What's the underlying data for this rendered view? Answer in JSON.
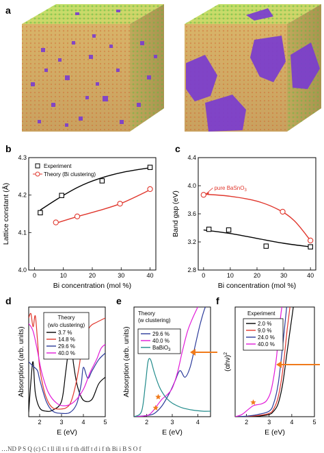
{
  "colors": {
    "black": "#000000",
    "red": "#e0362c",
    "navy": "#2b3a9a",
    "magenta": "#e21ad8",
    "teal": "#1f8a8a",
    "orange": "#f07a1a",
    "green_atoms": "#3cc43c",
    "yellow_bonds": "#c8b43c",
    "purple_atoms": "#7a3cd0"
  },
  "panels": {
    "a": {
      "label": "a"
    },
    "b": {
      "label": "b"
    },
    "c": {
      "label": "c"
    },
    "d": {
      "label": "d"
    },
    "e": {
      "label": "e"
    },
    "f": {
      "label": "f"
    }
  },
  "chart_data": [
    {
      "panel": "b",
      "type": "scatter",
      "xlabel": "Bi concentration (mol %)",
      "ylabel": "Lattice constant (Å)",
      "xlim": [
        -2,
        42
      ],
      "ylim": [
        4.0,
        4.3
      ],
      "xticks": [
        "0",
        "10",
        "20",
        "30",
        "40"
      ],
      "yticks": [
        "4.0",
        "4.1",
        "4.2",
        "4.3"
      ],
      "legend": {
        "position": "top-left"
      },
      "series": [
        {
          "name": "Experiment",
          "marker": "square",
          "color": "black",
          "x": [
            2,
            9.4,
            23.4,
            40
          ],
          "y": [
            4.153,
            4.199,
            4.238,
            4.274
          ],
          "fit": [
            [
              2,
              4.16
            ],
            [
              8,
              4.19
            ],
            [
              15,
              4.221
            ],
            [
              22,
              4.243
            ],
            [
              30,
              4.26
            ],
            [
              40,
              4.273
            ]
          ]
        },
        {
          "name": "Theory (Bi clustering)",
          "marker": "circle",
          "color": "red",
          "x": [
            7.4,
            14.8,
            29.6,
            40
          ],
          "y": [
            4.127,
            4.143,
            4.177,
            4.216
          ],
          "fit": [
            [
              7.4,
              4.125
            ],
            [
              15,
              4.143
            ],
            [
              22,
              4.158
            ],
            [
              30,
              4.178
            ],
            [
              40,
              4.214
            ]
          ]
        }
      ]
    },
    {
      "panel": "c",
      "type": "scatter",
      "xlabel": "Bi concentration (mol %)",
      "ylabel": "Band gap (eV)",
      "xlim": [
        -2,
        42
      ],
      "ylim": [
        2.8,
        4.4
      ],
      "xticks": [
        "0",
        "10",
        "20",
        "30",
        "40"
      ],
      "yticks": [
        "2.8",
        "3.2",
        "3.6",
        "4.0",
        "4.4"
      ],
      "annotation": {
        "text": "pure BaSnO",
        "sub": "3"
      },
      "series": [
        {
          "name": "Experiment",
          "marker": "square",
          "color": "black",
          "x": [
            2,
            9.4,
            23.4,
            40
          ],
          "y": [
            3.38,
            3.37,
            3.14,
            3.13
          ],
          "fit": [
            [
              0,
              3.37
            ],
            [
              10,
              3.32
            ],
            [
              20,
              3.25
            ],
            [
              30,
              3.18
            ],
            [
              40,
              3.13
            ]
          ]
        },
        {
          "name": "Theory (Bi clustering)",
          "marker": "circle",
          "color": "red",
          "x": [
            0,
            29.6,
            40
          ],
          "y": [
            3.87,
            3.63,
            3.22
          ],
          "fit": [
            [
              0,
              3.88
            ],
            [
              10,
              3.85
            ],
            [
              20,
              3.78
            ],
            [
              28,
              3.66
            ],
            [
              34,
              3.5
            ],
            [
              40,
              3.22
            ]
          ]
        }
      ]
    },
    {
      "panel": "d",
      "type": "line",
      "xlabel": "E (eV)",
      "ylabel": "Absorption (arb. units)",
      "xlim": [
        1.5,
        5
      ],
      "xticks": [
        "2",
        "3",
        "4",
        "5"
      ],
      "ylim": [
        0,
        1
      ],
      "legend": {
        "title": "Theory",
        "subtitle": "(w/o clustering)",
        "position": "middle-right"
      },
      "series": [
        {
          "name": "3.7 %",
          "color": "black",
          "x": [
            1.5,
            1.6,
            1.7,
            1.8,
            2.0,
            2.3,
            2.6,
            3.0,
            3.2,
            3.4,
            3.55,
            3.7,
            3.9,
            4.1,
            4.4,
            4.7,
            5.0
          ],
          "y": [
            0.04,
            0.32,
            0.5,
            0.22,
            0.08,
            0.05,
            0.06,
            0.14,
            0.42,
            0.7,
            0.48,
            0.3,
            0.18,
            0.14,
            0.16,
            0.3,
            0.36
          ]
        },
        {
          "name": "14.8 %",
          "color": "red",
          "x": [
            1.5,
            1.6,
            1.7,
            1.8,
            1.9,
            2.0,
            2.2,
            2.4,
            2.6,
            2.8,
            3.0,
            3.2,
            3.4,
            3.6,
            3.8,
            4.0,
            4.3,
            4.6,
            5.0
          ],
          "y": [
            0.9,
            0.94,
            0.82,
            0.92,
            0.7,
            0.45,
            0.24,
            0.13,
            0.08,
            0.07,
            0.07,
            0.08,
            0.12,
            0.25,
            0.45,
            0.7,
            0.82,
            0.86,
            0.9
          ]
        },
        {
          "name": "29.6 %",
          "color": "navy",
          "x": [
            1.5,
            1.7,
            1.9,
            2.0,
            2.3,
            2.6,
            3.0,
            3.4,
            3.7,
            3.9,
            4.0,
            4.2,
            4.4,
            4.7,
            5.0
          ],
          "y": [
            0.5,
            0.46,
            0.42,
            0.34,
            0.14,
            0.05,
            0.03,
            0.04,
            0.12,
            0.3,
            0.45,
            0.35,
            0.42,
            0.52,
            0.58
          ]
        },
        {
          "name": "40.0 %",
          "color": "magenta",
          "x": [
            1.5,
            1.7,
            1.9,
            2.1,
            2.4,
            2.8,
            3.2,
            3.6,
            4.0,
            4.3,
            4.6,
            4.8,
            5.0
          ],
          "y": [
            0.85,
            0.78,
            0.6,
            0.4,
            0.22,
            0.12,
            0.1,
            0.14,
            0.25,
            0.4,
            0.52,
            0.62,
            0.66
          ]
        }
      ]
    },
    {
      "panel": "e",
      "type": "line",
      "xlabel": "E (eV)",
      "ylabel": "Absorption (arb. units)",
      "xlim": [
        1.5,
        4.5
      ],
      "xticks": [
        "2",
        "3",
        "4"
      ],
      "ylim": [
        0,
        1
      ],
      "legend": {
        "title": "Theory",
        "subtitle": "(w clustering)",
        "position": "middle"
      },
      "series": [
        {
          "name": "29.6 %",
          "color": "navy",
          "x": [
            1.5,
            2.0,
            2.3,
            2.6,
            2.9,
            3.1,
            3.3,
            3.5,
            3.7,
            3.9,
            4.1,
            4.3,
            4.5
          ],
          "y": [
            0.0,
            0.01,
            0.03,
            0.1,
            0.22,
            0.32,
            0.42,
            0.36,
            0.45,
            0.65,
            0.85,
            1.0,
            1.05
          ]
        },
        {
          "name": "40.0 %",
          "color": "magenta",
          "x": [
            1.5,
            2.0,
            2.2,
            2.4,
            2.6,
            2.8,
            3.0,
            3.2,
            3.4,
            3.6,
            3.8,
            4.0,
            4.1
          ],
          "y": [
            0.0,
            0.01,
            0.04,
            0.1,
            0.16,
            0.2,
            0.26,
            0.4,
            0.6,
            0.78,
            0.9,
            1.0,
            1.05
          ]
        },
        {
          "name": "BaBiO",
          "name_sub": "3",
          "color": "teal",
          "x": [
            1.5,
            1.8,
            1.95,
            2.05,
            2.15,
            2.3,
            2.5,
            2.7,
            2.9,
            3.1,
            3.4,
            3.8,
            4.2,
            4.5
          ],
          "y": [
            0.0,
            0.05,
            0.3,
            0.5,
            0.52,
            0.4,
            0.27,
            0.19,
            0.14,
            0.11,
            0.08,
            0.06,
            0.05,
            0.05
          ]
        }
      ],
      "markers": [
        {
          "type": "star",
          "color": "orange",
          "x": 2.45,
          "y": 0.18
        },
        {
          "type": "star",
          "color": "orange",
          "x": 2.35,
          "y": 0.08
        }
      ],
      "arrow": {
        "color": "orange",
        "direction": "left"
      }
    },
    {
      "panel": "f",
      "type": "line",
      "xlabel": "E (eV)",
      "ylabel": "(αhν)",
      "ylabel_sup": "2",
      "xlim": [
        1.5,
        5
      ],
      "xticks": [
        "2",
        "3",
        "4",
        "5"
      ],
      "ylim": [
        0,
        1
      ],
      "legend": {
        "title": "Experiment",
        "position": "top-left"
      },
      "series": [
        {
          "name": "2.0 %",
          "color": "black",
          "x": [
            1.5,
            2.0,
            2.5,
            3.0,
            3.2,
            3.4,
            3.6,
            3.8,
            4.0,
            4.1
          ],
          "y": [
            0.0,
            0.0,
            0.005,
            0.02,
            0.05,
            0.12,
            0.3,
            0.6,
            0.9,
            1.05
          ]
        },
        {
          "name": "9.0 %",
          "color": "red",
          "x": [
            1.5,
            2.0,
            2.5,
            3.0,
            3.2,
            3.4,
            3.6,
            3.8,
            3.95
          ],
          "y": [
            0.0,
            0.003,
            0.01,
            0.03,
            0.07,
            0.18,
            0.42,
            0.8,
            1.05
          ]
        },
        {
          "name": "24.0 %",
          "color": "navy",
          "x": [
            1.5,
            2.0,
            2.5,
            3.0,
            3.2,
            3.4,
            3.6,
            3.8
          ],
          "y": [
            0.0,
            0.005,
            0.02,
            0.05,
            0.12,
            0.3,
            0.65,
            1.05
          ]
        },
        {
          "name": "40.0 %",
          "color": "magenta",
          "x": [
            1.5,
            1.8,
            2.1,
            2.3,
            2.5,
            2.7,
            2.9,
            3.1,
            3.3,
            3.5,
            3.6
          ],
          "y": [
            0.0,
            0.02,
            0.07,
            0.1,
            0.11,
            0.12,
            0.15,
            0.25,
            0.5,
            0.9,
            1.05
          ]
        }
      ],
      "markers": [
        {
          "type": "star",
          "color": "orange",
          "x": 2.3,
          "y": 0.13
        }
      ],
      "arrow": {
        "color": "orange",
        "direction": "left"
      }
    }
  ],
  "caption": "…ND P S Q (c) C t ll ill t ti f th diff t d i f th Bi i B S O f"
}
